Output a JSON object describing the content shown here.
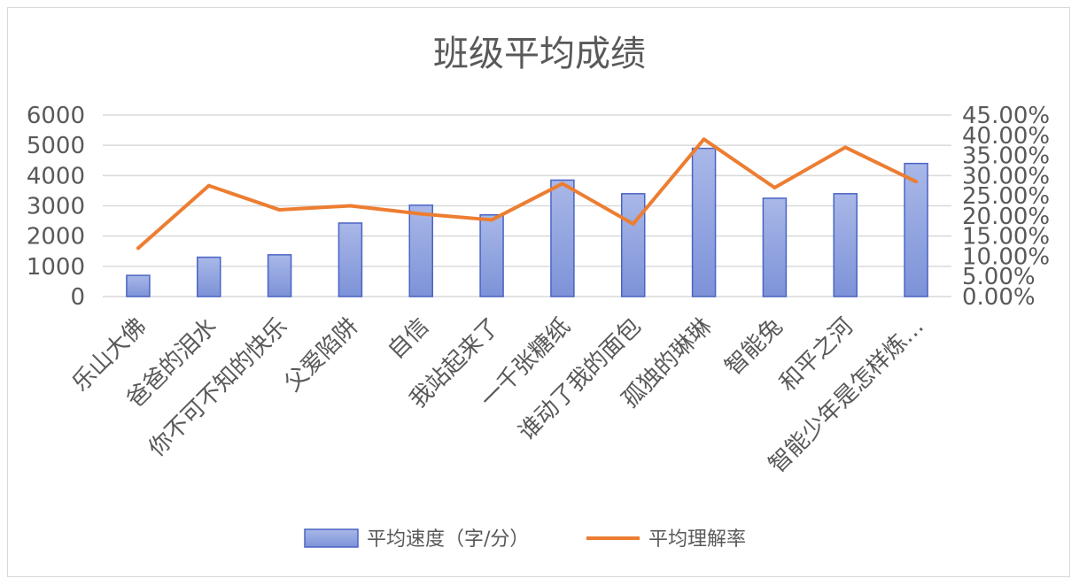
{
  "chart_data": {
    "type": "bar",
    "title": "班级平均成绩",
    "categories": [
      "乐山大佛",
      "爸爸的泪水",
      "你不可不知的快乐",
      "父爱陷阱",
      "自信",
      "我站起来了",
      "一千张糖纸",
      "谁动了我的面包",
      "孤独的琳琳",
      "智能兔",
      "和平之河",
      "智能少年是怎样炼…"
    ],
    "series": [
      {
        "name": "平均速度（字/分）",
        "type": "bar",
        "axis": "left",
        "color": "#7f95dc",
        "values": [
          700,
          1300,
          1380,
          2430,
          3020,
          2700,
          3850,
          3400,
          4900,
          3250,
          3400,
          4400
        ]
      },
      {
        "name": "平均理解率",
        "type": "line",
        "axis": "right",
        "color": "#ed7d31",
        "values": [
          0.12,
          0.275,
          0.215,
          0.225,
          0.205,
          0.19,
          0.28,
          0.18,
          0.39,
          0.27,
          0.37,
          0.285
        ]
      }
    ],
    "yleft": {
      "ylim": [
        0,
        6000
      ],
      "ticks": [
        "0",
        "1000",
        "2000",
        "3000",
        "4000",
        "5000",
        "6000"
      ]
    },
    "yright": {
      "ylim": [
        0,
        0.45
      ],
      "ticks": [
        "0.00%",
        "5.00%",
        "10.00%",
        "15.00%",
        "20.00%",
        "25.00%",
        "30.00%",
        "35.00%",
        "40.00%",
        "45.00%"
      ]
    },
    "grid": true,
    "legend": "bottom",
    "gridColor": "#d9d9d9",
    "textColor": "#595959"
  }
}
